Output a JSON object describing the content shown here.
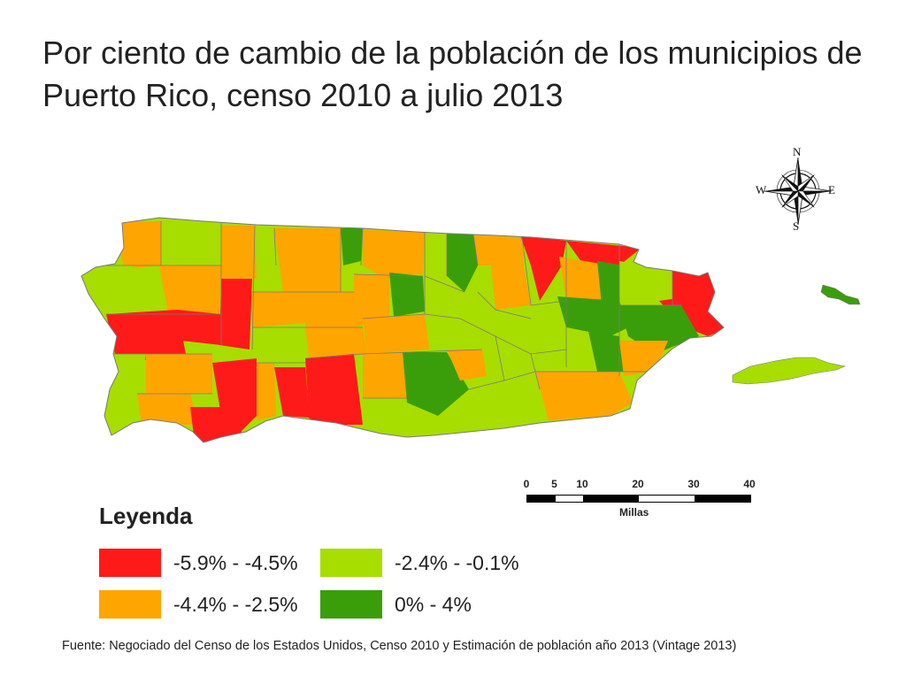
{
  "title": "Por ciento de cambio de la población de los municipios de Puerto Rico, censo 2010 a julio 2013",
  "colors": {
    "class1": "#ff1a1a",
    "class2": "#ffa500",
    "class3": "#a8dd00",
    "class4": "#3a9e0a",
    "border": "#7a7a7a"
  },
  "compass": {
    "n": "N",
    "s": "S",
    "e": "E",
    "w": "W"
  },
  "scale": {
    "ticks": [
      "0",
      "5",
      "10",
      "20",
      "30",
      "40"
    ],
    "tick_values": [
      0,
      5,
      10,
      20,
      30,
      40
    ],
    "unit": "Millas"
  },
  "legend": {
    "title": "Leyenda",
    "items": [
      {
        "label": "-5.9% - -4.5%",
        "color": "#ff1a1a"
      },
      {
        "label": "-4.4% - -2.5%",
        "color": "#ffa500"
      },
      {
        "label": "-2.4% - -0.1%",
        "color": "#a8dd00"
      },
      {
        "label": "0% - 4%",
        "color": "#3a9e0a"
      }
    ]
  },
  "source": "Fuente: Negociado del Censo de los Estados Unidos, Censo 2010 y Estimación de población año 2013 (Vintage 2013)"
}
